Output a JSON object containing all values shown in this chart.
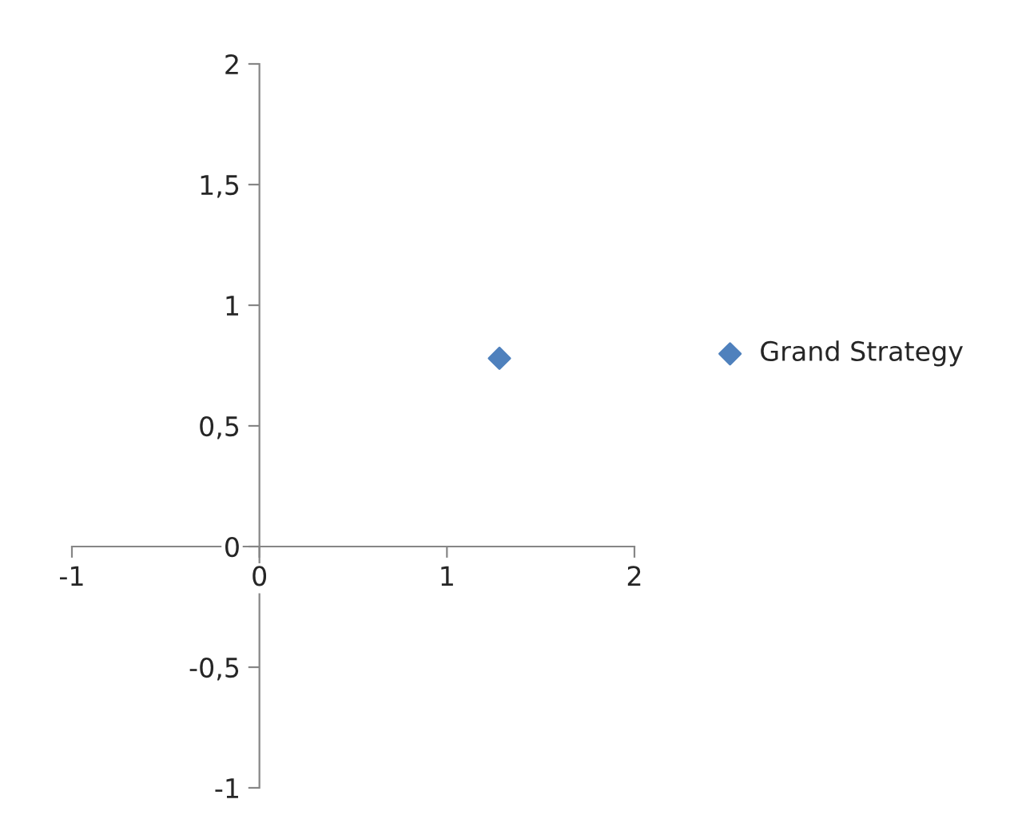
{
  "chart_data": {
    "type": "scatter",
    "x": [
      1.28
    ],
    "series": [
      {
        "name": "Grand Strategy",
        "color": "#4f81bd",
        "values": [
          0.78
        ]
      }
    ],
    "xlim": [
      -1,
      2
    ],
    "xticks": [
      -1,
      0,
      1,
      2
    ],
    "ylim": [
      -1,
      2
    ],
    "yticks": [
      {
        "value": -1,
        "label": "-1"
      },
      {
        "value": -0.5,
        "label": "-0,5"
      },
      {
        "value": 0,
        "label": "0"
      },
      {
        "value": 0.5,
        "label": "0,5"
      },
      {
        "value": 1,
        "label": "1"
      },
      {
        "value": 1.5,
        "label": "1,5"
      },
      {
        "value": 2,
        "label": "2"
      }
    ],
    "marker": "diamond",
    "legend": "right",
    "grid": false
  }
}
